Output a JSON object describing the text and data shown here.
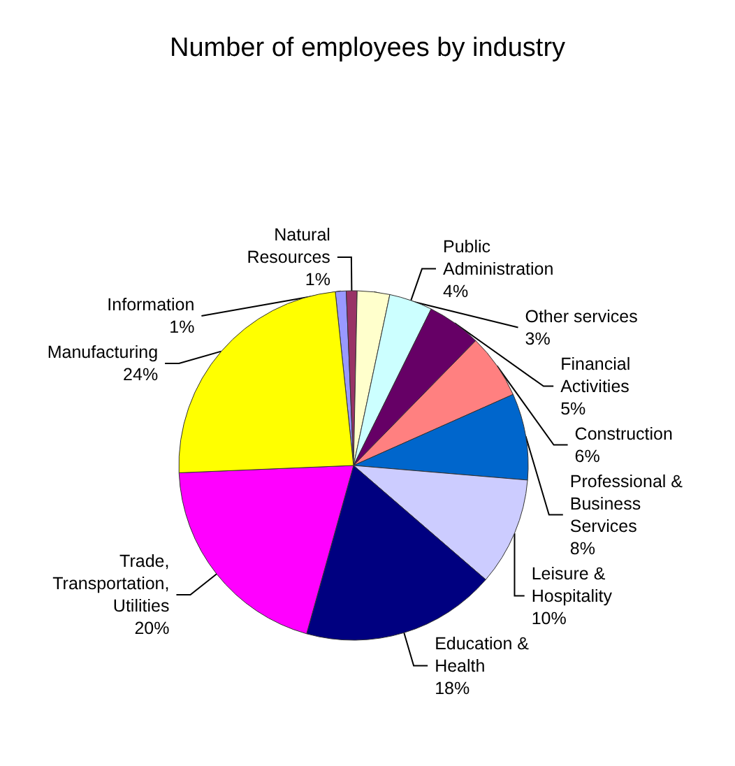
{
  "chart_data": {
    "type": "pie",
    "title": "Number of employees by industry",
    "categories": [
      "Information",
      "Natural\nResources",
      "Other services",
      "Public\nAdministration",
      "Financial\nActivities",
      "Construction",
      "Professional &\nBusiness\nServices",
      "Leisure &\nHospitality",
      "Education &\nHealth",
      "Trade,\nTransportation,\nUtilities",
      "Manufacturing"
    ],
    "values": [
      1,
      1,
      3,
      4,
      5,
      6,
      8,
      10,
      18,
      20,
      24
    ],
    "value_labels": [
      "1%",
      "1%",
      "3%",
      "4%",
      "5%",
      "6%",
      "8%",
      "10%",
      "18%",
      "20%",
      "24%"
    ],
    "colors": [
      "#9999ff",
      "#993366",
      "#ffffcc",
      "#ccffff",
      "#660066",
      "#ff8080",
      "#0066cc",
      "#ccccff",
      "#000080",
      "#ff00ff",
      "#ffff00"
    ],
    "legend": false
  }
}
